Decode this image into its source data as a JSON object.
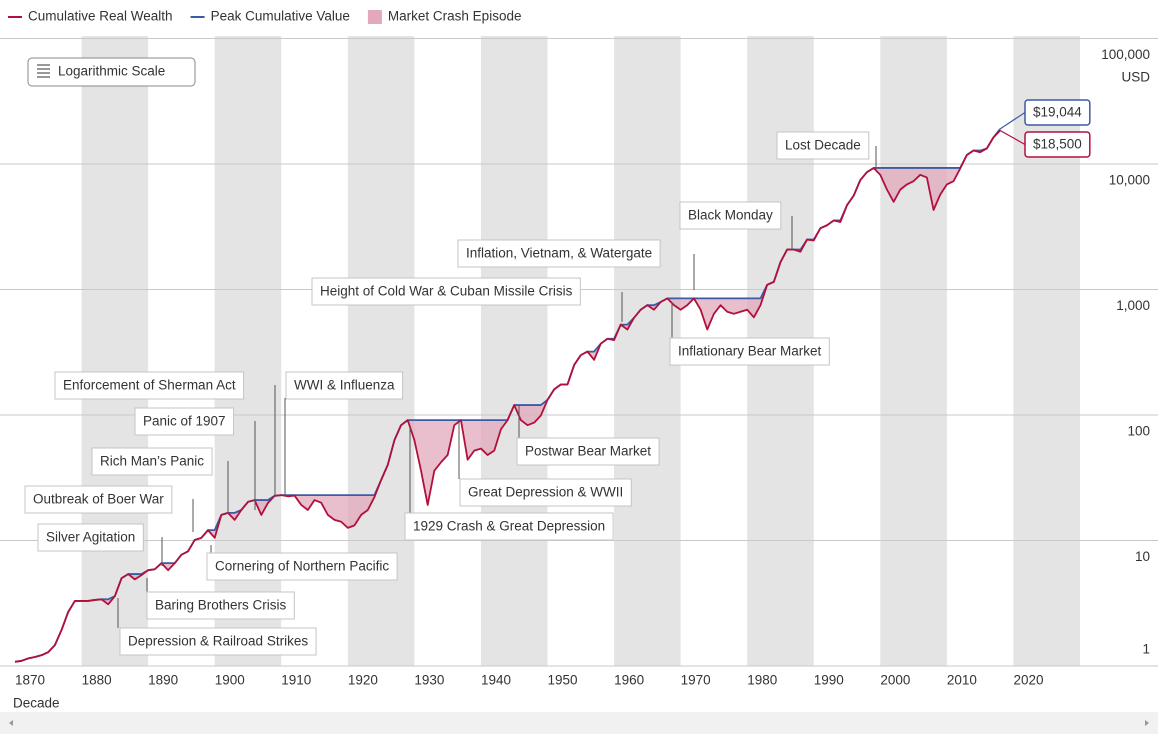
{
  "chart_data": {
    "type": "line",
    "yscale": "log",
    "scale_button": "Logarithmic Scale",
    "y_unit": "USD",
    "xlabel": "Decade",
    "area_label": "Market Crash Episode",
    "area_color": "#e2a9bc",
    "band_color": "#e4e4e4",
    "grid": true,
    "legend": "top-left",
    "xlim": [
      1870,
      2030
    ],
    "xticks": [
      1870,
      1880,
      1890,
      1900,
      1910,
      1920,
      1930,
      1940,
      1950,
      1960,
      1970,
      1980,
      1990,
      2000,
      2010,
      2020
    ],
    "ylim": [
      1,
      100000
    ],
    "yticks": [
      1,
      10,
      100,
      {
        "value": 1000,
        "label": "1,000"
      },
      {
        "value": 10000,
        "label": "10,000"
      },
      {
        "value": 100000,
        "label": "100,000"
      }
    ],
    "x": [
      1870,
      1871,
      1872,
      1873,
      1874,
      1875,
      1876,
      1877,
      1878,
      1879,
      1880,
      1881,
      1882,
      1883,
      1884,
      1885,
      1886,
      1887,
      1888,
      1889,
      1890,
      1891,
      1892,
      1893,
      1894,
      1895,
      1896,
      1897,
      1898,
      1899,
      1900,
      1901,
      1902,
      1903,
      1904,
      1905,
      1906,
      1907,
      1908,
      1909,
      1910,
      1911,
      1912,
      1913,
      1914,
      1915,
      1916,
      1917,
      1918,
      1919,
      1920,
      1921,
      1922,
      1923,
      1924,
      1925,
      1926,
      1927,
      1928,
      1929,
      1930,
      1931,
      1932,
      1933,
      1934,
      1935,
      1936,
      1937,
      1938,
      1939,
      1940,
      1941,
      1942,
      1943,
      1944,
      1945,
      1946,
      1947,
      1948,
      1949,
      1950,
      1951,
      1952,
      1953,
      1954,
      1955,
      1956,
      1957,
      1958,
      1959,
      1960,
      1961,
      1962,
      1963,
      1964,
      1965,
      1966,
      1967,
      1968,
      1969,
      1970,
      1971,
      1972,
      1973,
      1974,
      1975,
      1976,
      1977,
      1978,
      1979,
      1980,
      1981,
      1982,
      1983,
      1984,
      1985,
      1986,
      1987,
      1988,
      1989,
      1990,
      1991,
      1992,
      1993,
      1994,
      1995,
      1996,
      1997,
      1998,
      1999,
      2000,
      2001,
      2002,
      2003,
      2004,
      2005,
      2006,
      2007,
      2008,
      2009,
      2010,
      2011,
      2012,
      2013,
      2014,
      2015,
      2016,
      2017,
      2018
    ],
    "series": [
      {
        "name": "Cumulative Real Wealth",
        "color": "#b2103c",
        "value_labels": {
          "last": "$18,500"
        },
        "values": [
          1.08,
          1.1,
          1.15,
          1.18,
          1.22,
          1.29,
          1.47,
          1.94,
          2.7,
          3.3,
          3.3,
          3.3,
          3.36,
          3.4,
          3.1,
          3.6,
          5.0,
          5.4,
          4.9,
          5.3,
          5.8,
          5.9,
          6.6,
          5.8,
          6.6,
          7.7,
          8.2,
          10.1,
          10.5,
          12.1,
          10.5,
          16,
          16.6,
          14.6,
          17.5,
          20.3,
          21,
          16,
          19.9,
          22.7,
          23,
          22.5,
          22.8,
          19.2,
          17.5,
          21,
          20,
          16,
          14.6,
          14.1,
          12.6,
          13.2,
          16,
          17.5,
          22.2,
          30.3,
          40,
          63,
          83,
          91,
          63,
          36,
          19.2,
          36,
          42,
          48,
          83,
          91,
          44,
          52,
          54,
          48,
          52,
          77,
          91,
          120,
          91,
          83,
          87,
          99,
          132,
          160,
          175,
          175,
          250,
          300,
          320,
          275,
          370,
          405,
          395,
          525,
          480,
          595,
          690,
          750,
          690,
          795,
          850,
          750,
          690,
          750,
          850,
          690,
          480,
          640,
          750,
          665,
          640,
          665,
          690,
          600,
          750,
          1090,
          1150,
          1650,
          2080,
          2080,
          2000,
          2500,
          2460,
          3080,
          3250,
          3550,
          3450,
          4700,
          5600,
          7450,
          8620,
          9300,
          8200,
          6250,
          5000,
          6250,
          6880,
          7300,
          8200,
          7800,
          4300,
          5700,
          6880,
          7300,
          9200,
          11800,
          12800,
          12400,
          13300,
          16300,
          18500
        ]
      },
      {
        "name": "Peak Cumulative Value",
        "color": "#3d5aa6",
        "value_labels": {
          "last": "$19,044"
        },
        "values": [
          1.08,
          1.1,
          1.15,
          1.18,
          1.22,
          1.29,
          1.47,
          1.94,
          2.7,
          3.3,
          3.3,
          3.3,
          3.36,
          3.4,
          3.4,
          3.6,
          5.0,
          5.4,
          5.4,
          5.4,
          5.8,
          5.9,
          6.6,
          6.6,
          6.6,
          7.7,
          8.2,
          10.1,
          10.5,
          12.1,
          12.1,
          16,
          16.6,
          16.6,
          17.5,
          20.3,
          21,
          21,
          21,
          22.7,
          23,
          23,
          23,
          23,
          23,
          23,
          23,
          23,
          23,
          23,
          23,
          23,
          23,
          23,
          23,
          30.3,
          40,
          63,
          83,
          91,
          91,
          91,
          91,
          91,
          91,
          91,
          91,
          91,
          91,
          91,
          91,
          91,
          91,
          91,
          91,
          120,
          120,
          120,
          120,
          120,
          132,
          160,
          175,
          175,
          250,
          300,
          320,
          320,
          370,
          405,
          405,
          525,
          525,
          595,
          690,
          750,
          750,
          795,
          850,
          850,
          850,
          850,
          850,
          850,
          850,
          850,
          850,
          850,
          850,
          850,
          850,
          850,
          850,
          1090,
          1150,
          1650,
          2080,
          2080,
          2080,
          2500,
          2500,
          3080,
          3250,
          3550,
          3550,
          4700,
          5600,
          7450,
          8620,
          9300,
          9300,
          9300,
          9300,
          9300,
          9300,
          9300,
          9300,
          9300,
          9300,
          9300,
          9300,
          9300,
          9300,
          11800,
          12800,
          12800,
          13300,
          16300,
          19044
        ]
      }
    ],
    "annotations": [
      "Depression & Railroad Strikes",
      "Baring Brothers Crisis",
      "Cornering of Northern Pacific",
      "Silver Agitation",
      "Outbreak of Boer War",
      "Rich Man’s Panic",
      "Panic of 1907",
      "Enforcement of Sherman Act",
      "WWI & Influenza",
      "1929 Crash & Great Depression",
      "Great Depression & WWII",
      "Postwar Bear Market",
      "Height of Cold War & Cuban Missile Crisis",
      "Inflation, Vietnam, & Watergate",
      "Inflationary Bear Market",
      "Black Monday",
      "Lost Decade"
    ]
  }
}
